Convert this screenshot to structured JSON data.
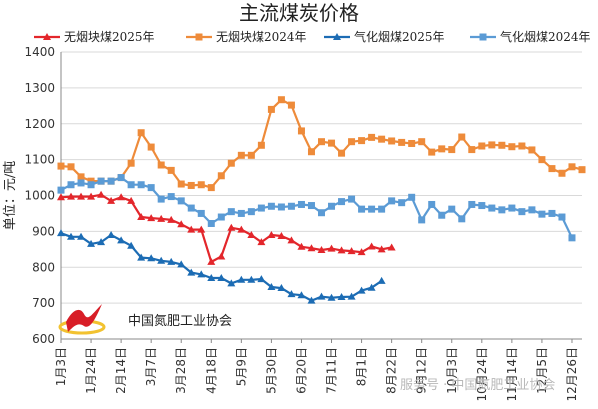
{
  "chart_data": {
    "type": "line",
    "title": "主流煤炭价格",
    "ylabel": "单位：元/吨",
    "ylim": [
      600,
      1400
    ],
    "yticks": [
      600,
      700,
      800,
      900,
      1000,
      1100,
      1200,
      1300,
      1400
    ],
    "x_count": 53,
    "x_labels": [
      {
        "i": 0,
        "label": "1月3日"
      },
      {
        "i": 3,
        "label": "1月24日"
      },
      {
        "i": 6,
        "label": "2月14日"
      },
      {
        "i": 9,
        "label": "3月7日"
      },
      {
        "i": 12,
        "label": "3月28日"
      },
      {
        "i": 15,
        "label": "4月18日"
      },
      {
        "i": 18,
        "label": "5月9日"
      },
      {
        "i": 21,
        "label": "5月30日"
      },
      {
        "i": 24,
        "label": "6月20日"
      },
      {
        "i": 27,
        "label": "7月11日"
      },
      {
        "i": 30,
        "label": "8月1日"
      },
      {
        "i": 33,
        "label": "8月22日"
      },
      {
        "i": 36,
        "label": "9月12日"
      },
      {
        "i": 39,
        "label": "10月3日"
      },
      {
        "i": 42,
        "label": "10月24日"
      },
      {
        "i": 45,
        "label": "11月14日"
      },
      {
        "i": 48,
        "label": "12月5日"
      },
      {
        "i": 51,
        "label": "12月26日"
      }
    ],
    "grid": true,
    "legend": "top",
    "series": [
      {
        "name": "无烟块煤2025年",
        "color": "#e3262b",
        "marker": "triangle",
        "values": [
          995,
          997,
          997,
          997,
          1002,
          985,
          995,
          985,
          940,
          937,
          935,
          932,
          920,
          905,
          905,
          815,
          830,
          910,
          905,
          890,
          870,
          890,
          887,
          875,
          857,
          853,
          848,
          852,
          847,
          845,
          842,
          858,
          850,
          855
        ]
      },
      {
        "name": "无烟块煤2024年",
        "color": "#ee8b3a",
        "marker": "square",
        "values": [
          1082,
          1080,
          1052,
          1040,
          1040,
          1040,
          1050,
          1090,
          1175,
          1135,
          1085,
          1070,
          1032,
          1028,
          1030,
          1022,
          1055,
          1090,
          1112,
          1112,
          1140,
          1240,
          1267,
          1252,
          1180,
          1122,
          1150,
          1146,
          1118,
          1150,
          1153,
          1162,
          1157,
          1152,
          1148,
          1145,
          1150,
          1121,
          1130,
          1128,
          1163,
          1128,
          1138,
          1141,
          1140,
          1136,
          1138,
          1127,
          1100,
          1075,
          1062,
          1080,
          1072
        ]
      },
      {
        "name": "气化烟煤2025年",
        "color": "#1c6cb4",
        "marker": "triangle",
        "values": [
          895,
          885,
          885,
          865,
          870,
          890,
          875,
          860,
          827,
          825,
          818,
          815,
          808,
          785,
          780,
          770,
          770,
          755,
          765,
          765,
          767,
          745,
          742,
          725,
          722,
          707,
          718,
          715,
          717,
          718,
          735,
          743,
          762
        ]
      },
      {
        "name": "气化烟煤2024年",
        "color": "#5b9bd5",
        "marker": "square",
        "values": [
          1015,
          1030,
          1035,
          1030,
          1040,
          1040,
          1050,
          1030,
          1030,
          1022,
          990,
          997,
          985,
          965,
          950,
          922,
          940,
          955,
          950,
          955,
          965,
          970,
          968,
          970,
          975,
          972,
          952,
          970,
          983,
          990,
          962,
          962,
          962,
          985,
          980,
          995,
          932,
          975,
          945,
          962,
          935,
          975,
          972,
          965,
          960,
          965,
          955,
          960,
          948,
          950,
          940,
          882
        ]
      }
    ]
  },
  "logo": {
    "org_name": "中国氮肥工业协会"
  },
  "watermark": {
    "text": "服务号 · 中国氮肥工业协会"
  }
}
